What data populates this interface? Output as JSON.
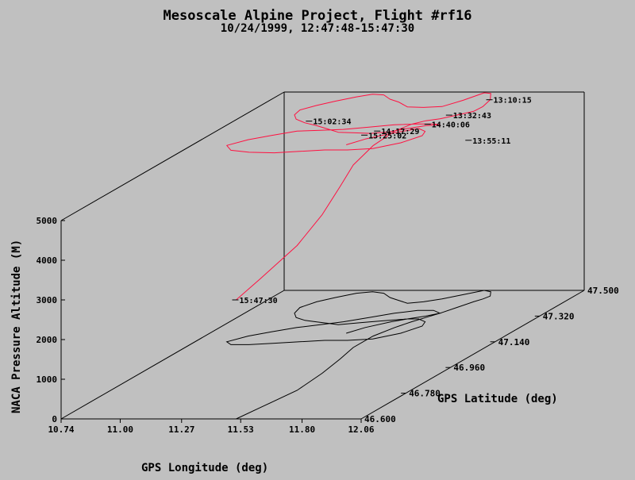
{
  "chart_data": {
    "type": "line",
    "title": "Mesoscale Alpine Project, Flight #rf16",
    "subtitle": "10/24/1999, 12:47:48-15:47:30",
    "xlabel": "GPS Longitude (deg)",
    "ylabel": "GPS Latitude (deg)",
    "zlabel": "NACA Pressure Altitude (M)",
    "xlim": [
      10.74,
      12.06
    ],
    "ylim": [
      46.6,
      47.5
    ],
    "zlim": [
      0,
      5000
    ],
    "x_ticks": [
      "10.74",
      "11.00",
      "11.27",
      "11.53",
      "11.80",
      "12.06"
    ],
    "y_ticks": [
      "46.600",
      "46.780",
      "46.960",
      "47.140",
      "47.320",
      "47.500"
    ],
    "z_ticks": [
      "0",
      "1000",
      "2000",
      "3000",
      "4000",
      "5000"
    ],
    "colors": {
      "track": "#ff1040",
      "shadow": "#000000",
      "axes": "#000000",
      "background": "#c0c0c0"
    },
    "series": [
      {
        "x": [
          11.51,
          11.53,
          11.56,
          11.54,
          11.51,
          11.48,
          11.48,
          11.51,
          11.54,
          11.57,
          11.6,
          11.63,
          11.66,
          11.68,
          11.69,
          11.66,
          11.62,
          11.56,
          11.5,
          11.44,
          11.38,
          11.32,
          11.26,
          11.2,
          11.14,
          11.08,
          11.02,
          10.97,
          10.94,
          10.96,
          11.0,
          11.06,
          11.12,
          11.18,
          11.24,
          11.3,
          11.36,
          11.43,
          11.5,
          11.56,
          11.6,
          11.55,
          11.48,
          11.4,
          11.32,
          11.24,
          11.16,
          11.08,
          11.0,
          10.93,
          10.88,
          10.92,
          11.0,
          11.1,
          11.2,
          11.3,
          11.4,
          11.5,
          11.58,
          11.62,
          11.6,
          11.55,
          11.5,
          11.45,
          11.38,
          11.34
        ],
        "y": [
          46.6,
          46.68,
          46.8,
          46.92,
          47.02,
          47.1,
          47.18,
          47.24,
          47.28,
          47.31,
          47.34,
          47.38,
          47.42,
          47.44,
          47.46,
          47.49,
          47.5,
          47.47,
          47.44,
          47.42,
          47.41,
          47.43,
          47.45,
          47.48,
          47.49,
          47.48,
          47.45,
          47.42,
          47.38,
          47.34,
          47.31,
          47.29,
          47.28,
          47.27,
          47.26,
          47.27,
          47.28,
          47.29,
          47.3,
          47.32,
          47.34,
          47.36,
          47.36,
          47.34,
          47.31,
          47.28,
          47.26,
          47.24,
          47.21,
          47.18,
          47.14,
          47.12,
          47.12,
          47.13,
          47.14,
          47.15,
          47.15,
          47.16,
          47.2,
          47.25,
          47.28,
          47.3,
          47.3,
          47.28,
          47.24,
          47.2
        ],
        "z": [
          3000,
          3250,
          3650,
          4000,
          4350,
          4600,
          4800,
          4950,
          4980,
          4960,
          4900,
          4850,
          4800,
          4850,
          4950,
          5000,
          4980,
          4900,
          4850,
          4900,
          4950,
          5000,
          5000,
          5000,
          4980,
          4950,
          4950,
          4950,
          4980,
          5000,
          5000,
          4980,
          4950,
          4900,
          4850,
          4800,
          4750,
          4750,
          4800,
          4800,
          4750,
          4700,
          4700,
          4750,
          4800,
          4850,
          4900,
          4950,
          4950,
          4950,
          4950,
          4900,
          4850,
          4800,
          4800,
          4800,
          4800,
          4800,
          4800,
          4800,
          4800,
          4800,
          4750,
          4750,
          4750,
          4750
        ]
      }
    ],
    "annotations": [
      {
        "label": "13:32:43",
        "x": 11.6,
        "y": 47.38,
        "z": 4850
      },
      {
        "label": "13:10:15",
        "x": 11.69,
        "y": 47.46,
        "z": 4950
      },
      {
        "label": "14:40:06",
        "x": 11.56,
        "y": 47.33,
        "z": 4800
      },
      {
        "label": "13:55:11",
        "x": 11.62,
        "y": 47.44,
        "z": 4000
      },
      {
        "label": "15:25:02",
        "x": 11.38,
        "y": 47.24,
        "z": 4850
      },
      {
        "label": "15:02:34",
        "x": 11.06,
        "y": 47.31,
        "z": 4950
      },
      {
        "label": "14:17:29",
        "x": 11.36,
        "y": 47.31,
        "z": 4700
      },
      {
        "label": "15:47:30",
        "x": 11.51,
        "y": 46.6,
        "z": 3000
      }
    ]
  }
}
